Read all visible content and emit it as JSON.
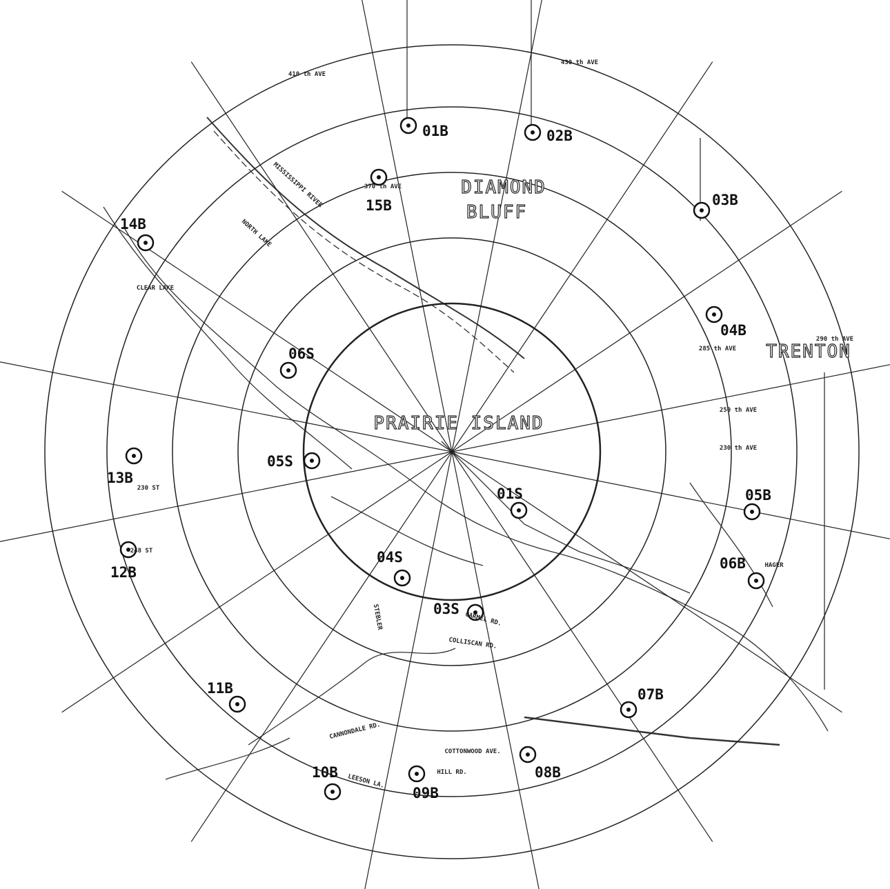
{
  "map": {
    "places": [
      "DIAMOND",
      "BLUFF",
      "PRAIRIE ISLAND",
      "TRENTON"
    ],
    "stations": [
      "01B",
      "02B",
      "15B",
      "03B",
      "14B",
      "04B",
      "06S",
      "13B",
      "05S",
      "01S",
      "05B",
      "12B",
      "04S",
      "06B",
      "03S",
      "11B",
      "07B",
      "08B",
      "10B",
      "09B"
    ],
    "features": [
      "MISSISSIPPI RIVER",
      "NORTH LAKE",
      "COLLISCAN RD.",
      "CANNONDALE RD.",
      "HILL RD.",
      "COTTONWOOD AVE.",
      "HAGER",
      "LEESON LA.",
      "430 th AVE",
      "410 th AVE",
      "370 th AVE",
      "250 th AVE",
      "230 th AVE",
      "290 th AVE",
      "230 ST",
      "CLEAR LAKE",
      "STEBLER",
      "CARMEL RD.",
      "285 th AVE",
      "248 ST"
    ]
  }
}
